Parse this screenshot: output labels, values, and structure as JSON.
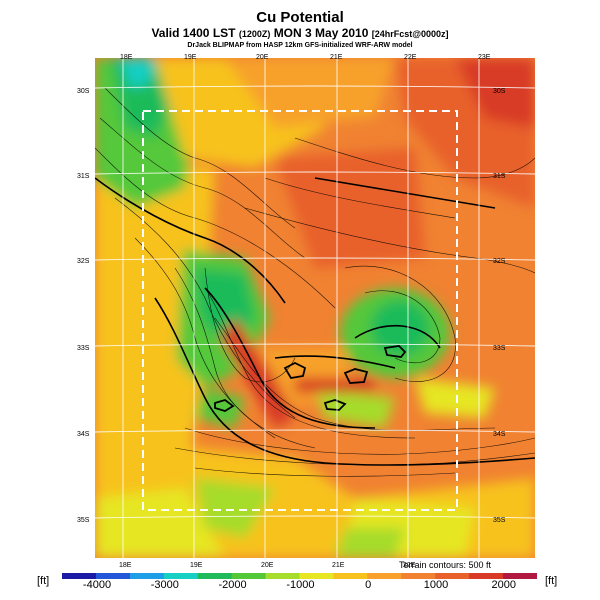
{
  "header": {
    "title": "Cu Potential",
    "subtitle_main": "Valid 1400 LST",
    "subtitle_utc": "(1200Z)",
    "subtitle_date": "MON 3 May 2010",
    "subtitle_fcst": "[24hrFcst@0000z]",
    "credit": "DrJack BLIPMAP from HASP 12km GFS-initialized WRF-ARW model"
  },
  "map": {
    "lon_labels_top": [
      "18E",
      "19E",
      "20E",
      "21E",
      "22E",
      "23E"
    ],
    "lon_labels_bottom": [
      "18E",
      "19E",
      "20E",
      "21E",
      "22E"
    ],
    "lat_labels_left": [
      "30S",
      "31S",
      "32S",
      "33S",
      "34S",
      "35S"
    ],
    "lat_labels_right": [
      "30S",
      "31S",
      "32S",
      "33S",
      "34S",
      "35S"
    ],
    "contour_note": "Terrain contours: 500 ft"
  },
  "colorbar": {
    "unit_left": "[ft]",
    "unit_right": "[ft]",
    "ticks": [
      "-4000",
      "-3000",
      "-2000",
      "-1000",
      "0",
      "1000",
      "2000"
    ],
    "colors": [
      "#1a1aa6",
      "#2456d8",
      "#1f9ee8",
      "#18cfc4",
      "#1fbb5a",
      "#55c83a",
      "#a6dc2c",
      "#e6e623",
      "#f7c21c",
      "#f7a12a",
      "#f08232",
      "#e8612a",
      "#d83a28",
      "#b01840"
    ]
  }
}
